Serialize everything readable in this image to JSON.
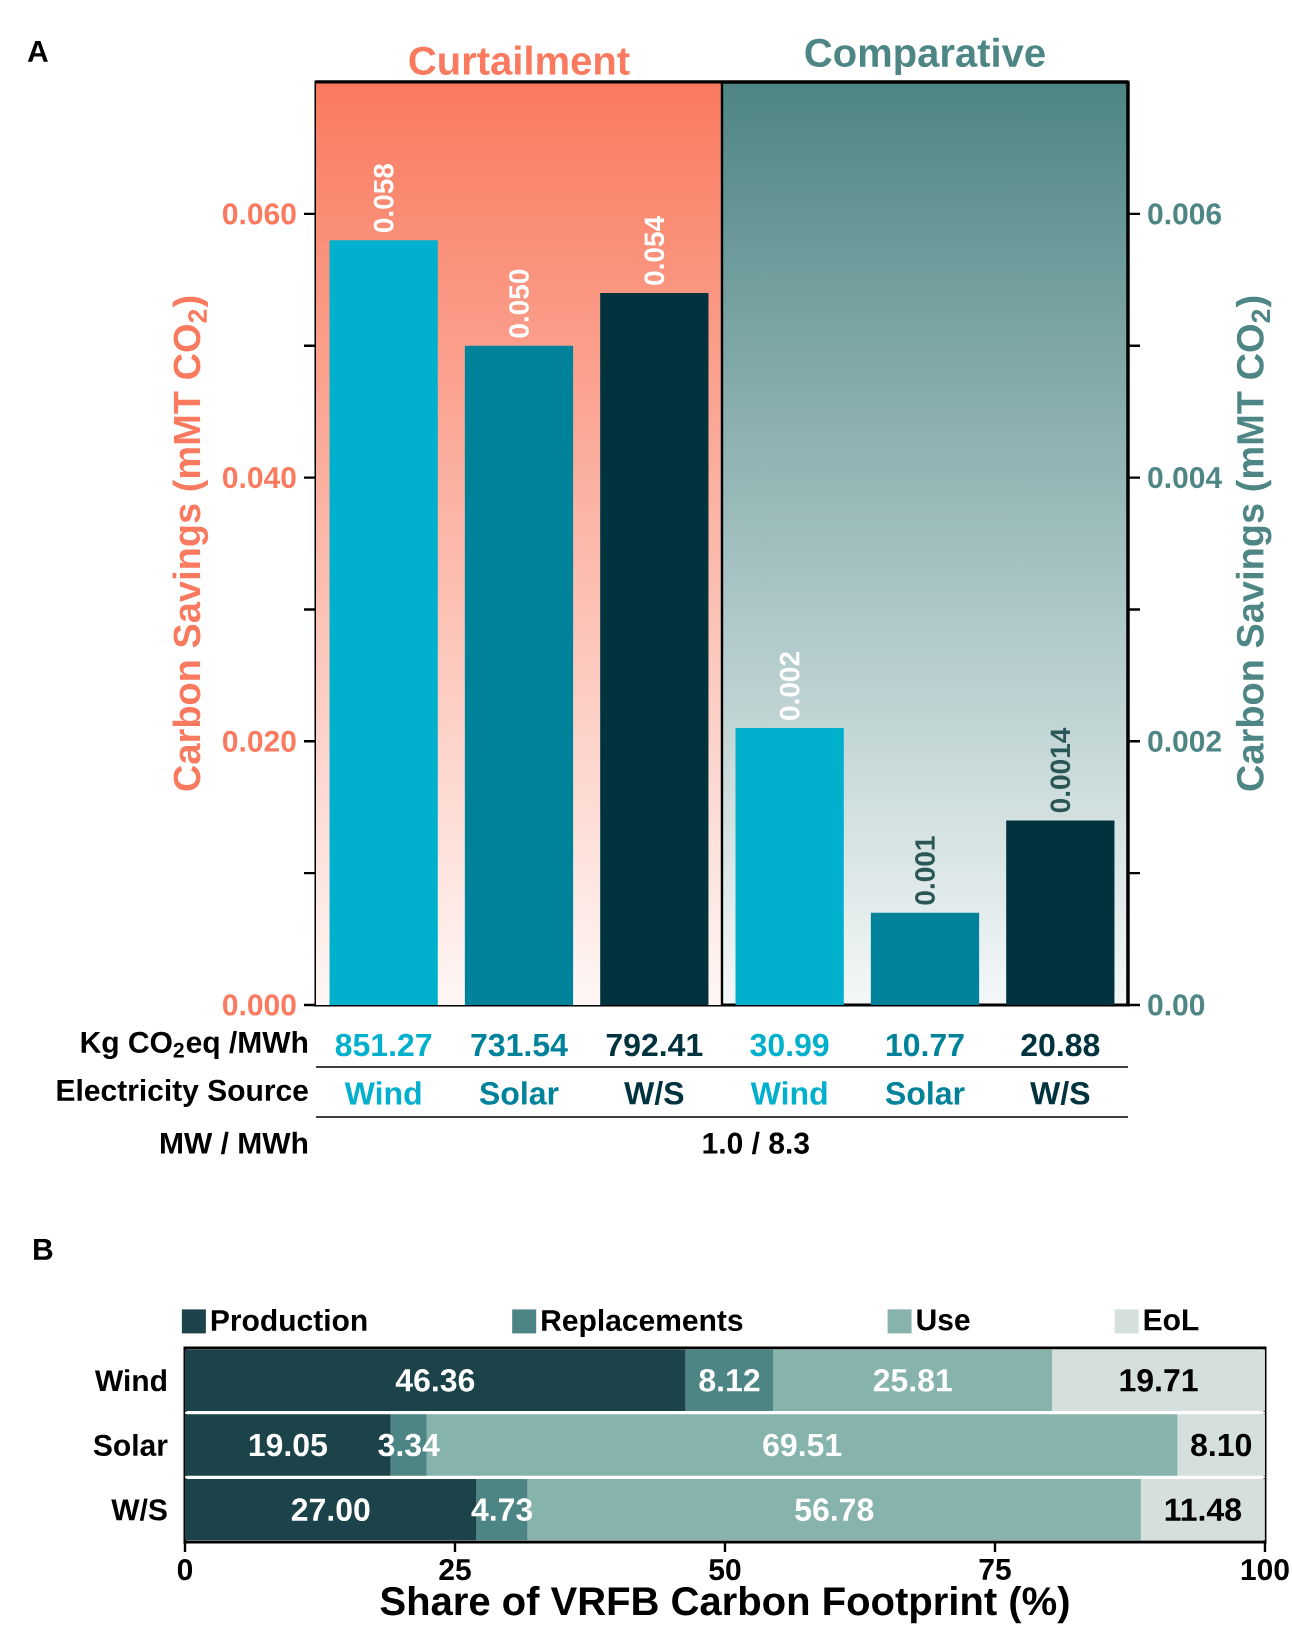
{
  "chart_data": [
    {
      "type": "bar",
      "title": "A",
      "categories": [
        "Wind",
        "Solar",
        "W/S",
        "Wind",
        "Solar",
        "W/S"
      ],
      "xlabel": "Electricity Source",
      "ylabel": "Carbon Savings (mMT CO$_{2}$)",
      "y2label": "Carbon Savings (mMT CO$_{2}$)",
      "ylim": [
        0,
        0.07
      ],
      "yticks": [
        {
          "value": 0,
          "label": "0.000"
        },
        {
          "value": 0.01,
          "label": null
        },
        {
          "value": 0.02,
          "label": "0.020"
        },
        {
          "value": 0.03,
          "label": null
        },
        {
          "value": 0.04,
          "label": "0.040"
        },
        {
          "value": 0.05,
          "label": null
        },
        {
          "value": 0.06,
          "label": "0.060"
        }
      ],
      "y2lim": [
        0,
        0.007
      ],
      "y2ticks": [
        {
          "value": 0,
          "label": "0.00"
        },
        {
          "value": 0.001,
          "label": null
        },
        {
          "value": 0.002,
          "label": "0.002"
        },
        {
          "value": 0.003,
          "label": null
        },
        {
          "value": 0.004,
          "label": "0.004"
        },
        {
          "value": 0.005,
          "label": null
        },
        {
          "value": 0.006,
          "label": "0.006"
        }
      ],
      "series": [
        {
          "colors": [
            "#00b0cc",
            "#00829a",
            "#01333f",
            "#00b0cc",
            "#00829a",
            "#01333f"
          ],
          "values": [
            0.058,
            0.05,
            0.054,
            null,
            null,
            null
          ],
          "value_labels": [
            "0.058",
            "0.050",
            "0.054",
            null,
            null,
            null
          ]
        },
        {
          "axis": "y2",
          "colors": [
            "#00b0cc",
            "#00829a",
            "#01333f",
            "#00b0cc",
            "#00829a",
            "#01333f"
          ],
          "values": [
            null,
            null,
            null,
            0.0021,
            0.0007,
            0.0014
          ],
          "value_labels": [
            null,
            null,
            null,
            "0.002",
            "0.001",
            "0.0014"
          ]
        }
      ],
      "annotations": [
        "Kg CO$_{2}$eq /MWh",
        "851.27",
        "731.54",
        "792.41",
        "30.99",
        "10.77",
        "20.88",
        "MW / MWh",
        "1.0 / 8.3",
        "Comparative"
      ],
      "bands": [
        {
          "axis": "x",
          "from": "Wind",
          "to": "W/S",
          "label": "Curtailment",
          "color": "#f97a5f"
        }
      ]
    },
    {
      "type": "bar",
      "title": "B",
      "orientation": "horizontal",
      "stacked": true,
      "categories": [
        "Wind",
        "Solar",
        "W/S"
      ],
      "xlabel": "Share of VRFB Carbon Footprint (%)",
      "xlim": [
        0,
        100
      ],
      "xticks": [
        0,
        25,
        50,
        75,
        100
      ],
      "legend": "top",
      "series": [
        {
          "name": "Production",
          "color": "#1b4349",
          "values": [
            46.36,
            19.05,
            27.0
          ],
          "value_labels": [
            "46.36",
            "19.05",
            "27.00"
          ]
        },
        {
          "name": "Replacements",
          "color": "#4d8585",
          "values": [
            8.12,
            3.34,
            4.73
          ],
          "value_labels": [
            "8.12",
            "3.34",
            "4.73"
          ]
        },
        {
          "name": "Use",
          "color": "#87b3ad",
          "values": [
            25.81,
            69.51,
            56.78
          ],
          "value_labels": [
            "25.81",
            "69.51",
            "56.78"
          ]
        },
        {
          "name": "EoL",
          "color": "#d5dfdd",
          "values": [
            19.71,
            8.1,
            11.48
          ],
          "value_labels": [
            "19.71",
            "8.10",
            "11.48"
          ]
        }
      ]
    }
  ]
}
